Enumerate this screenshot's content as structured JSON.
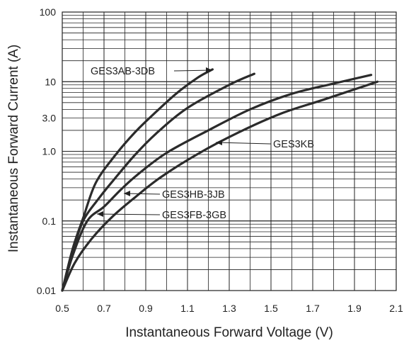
{
  "chart_data": {
    "type": "line",
    "title": "",
    "xlabel": "Instantaneous Forward Voltage (V)",
    "ylabel": "Instantaneous Forward Current (A)",
    "xlim": [
      0.5,
      2.1
    ],
    "ylim": [
      0.01,
      100
    ],
    "yscale": "log",
    "grid": true,
    "x_ticks": [
      "0.5",
      "0.7",
      "0.9",
      "1.1",
      "1.3",
      "1.5",
      "1.7",
      "1.9",
      "2.1"
    ],
    "y_ticks": [
      "0.01",
      "0.1",
      "1.0",
      "3.0",
      "10",
      "100"
    ],
    "series": [
      {
        "name": "GES3AB-3DB",
        "x": [
          0.5,
          0.55,
          0.6,
          0.66,
          0.75,
          0.85,
          0.95,
          1.05,
          1.15,
          1.22
        ],
        "y": [
          0.01,
          0.04,
          0.11,
          0.35,
          0.85,
          1.9,
          3.7,
          6.9,
          11.5,
          15
        ]
      },
      {
        "name": "",
        "x": [
          0.5,
          0.55,
          0.6,
          0.68,
          0.75,
          0.85,
          0.95,
          1.1,
          1.3,
          1.42
        ],
        "y": [
          0.01,
          0.035,
          0.1,
          0.22,
          0.4,
          0.9,
          1.8,
          4.2,
          9,
          13
        ]
      },
      {
        "name": "GES3HB-3JB",
        "x": [
          0.5,
          0.55,
          0.62,
          0.7,
          0.78,
          0.86,
          1.0,
          1.2,
          1.4,
          1.6,
          1.8,
          1.98
        ],
        "y": [
          0.01,
          0.032,
          0.1,
          0.16,
          0.28,
          0.46,
          0.95,
          2.0,
          4.0,
          6.7,
          9.4,
          12.5
        ]
      },
      {
        "name": "GES3KB",
        "x": [
          0.5,
          0.56,
          0.64,
          0.74,
          0.85,
          0.97,
          1.15,
          1.35,
          1.55,
          1.75,
          2.01
        ],
        "y": [
          0.01,
          0.025,
          0.055,
          0.115,
          0.22,
          0.42,
          0.92,
          1.9,
          3.5,
          5.5,
          10
        ]
      }
    ],
    "annotations": [
      {
        "text": "GES3AB-3DB",
        "series": "GES3AB-3DB"
      },
      {
        "text": "GES3KB",
        "series": "GES3KB"
      },
      {
        "text": "GES3HB-3JB",
        "series": "GES3HB-3JB"
      },
      {
        "text": "GES3FB-3GB",
        "series": ""
      }
    ]
  }
}
